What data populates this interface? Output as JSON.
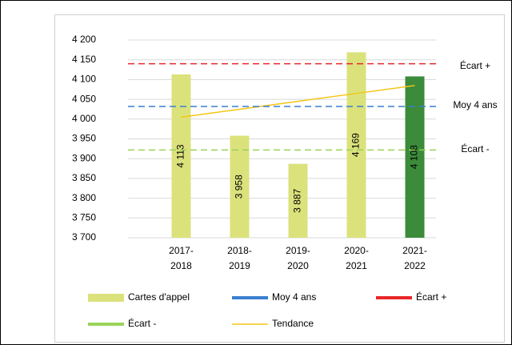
{
  "chart_data": {
    "type": "bar",
    "categories": [
      [
        "2017-",
        "2018"
      ],
      [
        "2018-",
        "2019"
      ],
      [
        "2019-",
        "2020"
      ],
      [
        "2020-",
        "2021"
      ],
      [
        "2021-",
        "2022"
      ]
    ],
    "series": [
      {
        "name": "Cartes d'appel",
        "colors": [
          "#dbe27c",
          "#dbe27c",
          "#dbe27c",
          "#dbe27c",
          "#3b8b3b"
        ],
        "values": [
          4113,
          3958,
          3887,
          4169,
          4108
        ],
        "value_labels": [
          "4 113",
          "3 958",
          "3 887",
          "4 169",
          "4 108"
        ]
      },
      {
        "name": "Tendance",
        "type": "line",
        "color": "#f5c518",
        "values": [
          4005,
          4025,
          4045,
          4065,
          4085
        ]
      }
    ],
    "reference_lines": [
      {
        "name": "Moy 4 ans",
        "color": "#3a7fd0",
        "value": 4032
      },
      {
        "name": "Écart +",
        "color": "#e8262a",
        "value": 4140
      },
      {
        "name": "Écart -",
        "color": "#9ad35a",
        "value": 3922
      }
    ],
    "ylim": [
      3700,
      4200
    ],
    "yticks": [
      {
        "value": 3700,
        "label": "3 700"
      },
      {
        "value": 3750,
        "label": "3 750"
      },
      {
        "value": 3800,
        "label": "3 800"
      },
      {
        "value": 3850,
        "label": "3 850"
      },
      {
        "value": 3900,
        "label": "3 900"
      },
      {
        "value": 3950,
        "label": "3 950"
      },
      {
        "value": 4000,
        "label": "4 000"
      },
      {
        "value": 4050,
        "label": "4 050"
      },
      {
        "value": 4100,
        "label": "4 100"
      },
      {
        "value": 4150,
        "label": "4 150"
      },
      {
        "value": 4200,
        "label": "4 200"
      }
    ],
    "grid": true
  }
}
